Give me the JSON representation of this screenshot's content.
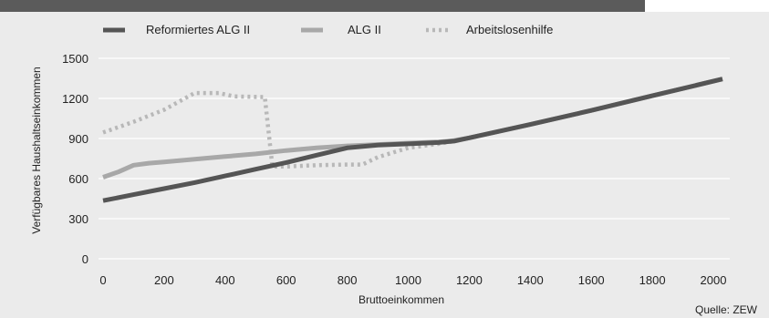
{
  "chart_data": {
    "type": "line",
    "title": "",
    "xlabel": "Bruttoeinkommen",
    "ylabel": "Verfügbares Haushaltseinkommen",
    "xlim": [
      0,
      2050
    ],
    "ylim": [
      0,
      1500
    ],
    "x_ticks": [
      0,
      200,
      400,
      600,
      800,
      1000,
      1200,
      1400,
      1600,
      1800,
      2000
    ],
    "y_ticks": [
      0,
      300,
      600,
      900,
      1200,
      1500
    ],
    "grid": "horizontal",
    "legend_position": "top",
    "source": "Quelle: ZEW",
    "series": [
      {
        "name": "Reformiertes ALG II",
        "color": "#555555",
        "style": "solid",
        "points": [
          [
            0,
            435
          ],
          [
            100,
            480
          ],
          [
            200,
            525
          ],
          [
            300,
            570
          ],
          [
            400,
            620
          ],
          [
            500,
            670
          ],
          [
            600,
            720
          ],
          [
            700,
            775
          ],
          [
            800,
            830
          ],
          [
            900,
            850
          ],
          [
            1000,
            860
          ],
          [
            1100,
            870
          ],
          [
            1150,
            880
          ],
          [
            1200,
            905
          ],
          [
            1400,
            1005
          ],
          [
            1600,
            1110
          ],
          [
            1800,
            1220
          ],
          [
            2030,
            1345
          ]
        ]
      },
      {
        "name": "ALG II",
        "color": "#a8a8a8",
        "style": "solid",
        "points": [
          [
            0,
            610
          ],
          [
            50,
            650
          ],
          [
            100,
            700
          ],
          [
            150,
            715
          ],
          [
            200,
            725
          ],
          [
            300,
            745
          ],
          [
            400,
            765
          ],
          [
            500,
            785
          ],
          [
            600,
            810
          ],
          [
            700,
            830
          ],
          [
            800,
            845
          ],
          [
            900,
            855
          ],
          [
            1000,
            865
          ],
          [
            1100,
            875
          ],
          [
            1150,
            885
          ],
          [
            1200,
            905
          ],
          [
            1400,
            1005
          ],
          [
            1600,
            1110
          ],
          [
            1800,
            1220
          ],
          [
            2030,
            1345
          ]
        ]
      },
      {
        "name": "Arbeitslosenhilfe",
        "color": "#b8b8b8",
        "style": "dotted",
        "points": [
          [
            0,
            945
          ],
          [
            100,
            1025
          ],
          [
            200,
            1115
          ],
          [
            300,
            1240
          ],
          [
            380,
            1240
          ],
          [
            430,
            1215
          ],
          [
            530,
            1210
          ],
          [
            555,
            690
          ],
          [
            600,
            690
          ],
          [
            700,
            700
          ],
          [
            800,
            705
          ],
          [
            850,
            705
          ],
          [
            900,
            760
          ],
          [
            1000,
            830
          ],
          [
            1100,
            860
          ],
          [
            1150,
            880
          ],
          [
            1200,
            905
          ]
        ]
      }
    ]
  }
}
